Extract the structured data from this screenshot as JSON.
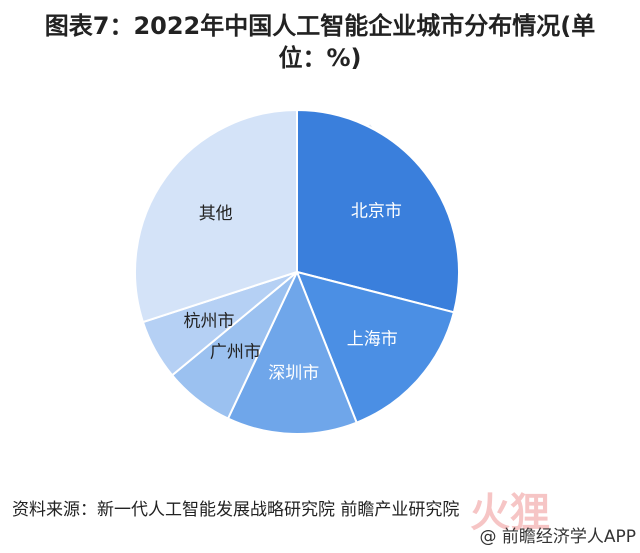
{
  "title_line1": "图表7：2022年中国人工智能企业城市分布情况(单",
  "title_line2": "位：%)",
  "source": "资料来源：新一代人工智能发展战略研究院 前瞻产业研究院",
  "credit": "@ 前瞻经济学人APP",
  "watermark": "前瞻产业研究院",
  "brandmark": "火狸",
  "chart_data": {
    "type": "pie",
    "title": "图表7：2022年中国人工智能企业城市分布情况(单位：%)",
    "unit": "%",
    "labels_shown_on_slices": true,
    "values_printed": false,
    "slices": [
      {
        "label": "北京市",
        "value": 29,
        "color": "#3a7fdc"
      },
      {
        "label": "上海市",
        "value": 15,
        "color": "#4b8fe4"
      },
      {
        "label": "深圳市",
        "value": 13,
        "color": "#6fa6ea"
      },
      {
        "label": "广州市",
        "value": 7,
        "color": "#9bc1f0"
      },
      {
        "label": "杭州市",
        "value": 6,
        "color": "#b5d0f4"
      },
      {
        "label": "其他",
        "value": 30,
        "color": "#d4e3f8"
      }
    ]
  }
}
